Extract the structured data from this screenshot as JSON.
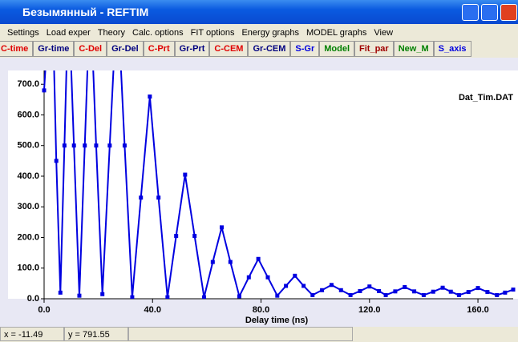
{
  "window": {
    "title": "Безымянный - REFTIM"
  },
  "menu": [
    "Settings",
    "Load exper",
    "Theory",
    "Calc. options",
    "FIT options",
    "Energy graphs",
    "MODEL graphs",
    "View"
  ],
  "toolbar": [
    {
      "label": "C-time",
      "color": "#e00000"
    },
    {
      "label": "Gr-time",
      "color": "#000080"
    },
    {
      "label": "C-Del",
      "color": "#e00000"
    },
    {
      "label": "Gr-Del",
      "color": "#000080"
    },
    {
      "label": "C-Prt",
      "color": "#e00000"
    },
    {
      "label": "Gr-Prt",
      "color": "#000080"
    },
    {
      "label": "C-CEM",
      "color": "#e00000"
    },
    {
      "label": "Gr-CEM",
      "color": "#000080"
    },
    {
      "label": "S-Gr",
      "color": "#0000e0"
    },
    {
      "label": "Model",
      "color": "#008000"
    },
    {
      "label": "Fit_par",
      "color": "#a00000"
    },
    {
      "label": "New_M",
      "color": "#008000"
    },
    {
      "label": "S_axis",
      "color": "#0000e0"
    }
  ],
  "chart_data": {
    "type": "line",
    "x_label": "Delay time (ns)",
    "annotation": "Dat_Tim.DAT",
    "xlim": [
      0,
      173
    ],
    "ylim": [
      0,
      745
    ],
    "xticks": [
      {
        "value": 0,
        "label": "0.0"
      },
      {
        "value": 40,
        "label": "40.0"
      },
      {
        "value": 80,
        "label": "80.0"
      },
      {
        "value": 120,
        "label": "120.0"
      },
      {
        "value": 160,
        "label": "160.0"
      }
    ],
    "yticks": [
      {
        "value": 0,
        "label": "0.0"
      },
      {
        "value": 100,
        "label": "100.0"
      },
      {
        "value": 200,
        "label": "200.0"
      },
      {
        "value": 300,
        "label": "300.0"
      },
      {
        "value": 400,
        "label": "400.0"
      },
      {
        "value": 500,
        "label": "500.0"
      },
      {
        "value": 600,
        "label": "600.0"
      },
      {
        "value": 700,
        "label": "700.0"
      }
    ],
    "x": [
      0,
      1.5,
      3,
      4.5,
      6,
      7.5,
      9,
      11,
      13,
      15,
      17,
      19.2,
      21.5,
      24.2,
      27,
      29.7,
      32.5,
      35.7,
      39,
      42.2,
      45.5,
      48.7,
      52,
      55.5,
      59,
      62.2,
      65.5,
      68.7,
      72,
      75.5,
      79,
      82.5,
      86,
      89.2,
      92.5,
      95.7,
      99,
      102.5,
      106,
      109.5,
      113,
      116.5,
      120,
      123.5,
      126,
      129.5,
      133,
      136.5,
      140,
      143.5,
      147,
      150,
      153,
      156.5,
      160,
      163.5,
      167,
      170,
      173
    ],
    "series": [
      {
        "color": "#0000e0",
        "values": [
          680,
          900,
          1000,
          450,
          20,
          500,
          1000,
          500,
          10,
          500,
          1000,
          500,
          15,
          500,
          1000,
          500,
          5,
          330,
          660,
          330,
          5,
          205,
          405,
          205,
          5,
          120,
          233,
          120,
          8,
          70,
          130,
          70,
          10,
          42,
          75,
          42,
          12,
          28,
          45,
          28,
          12,
          25,
          40,
          25,
          12,
          24,
          38,
          24,
          12,
          23,
          36,
          23,
          12,
          22,
          35,
          22,
          12,
          20,
          30
        ]
      }
    ]
  },
  "status": [
    "x = -11.49",
    "y = 791.55"
  ]
}
